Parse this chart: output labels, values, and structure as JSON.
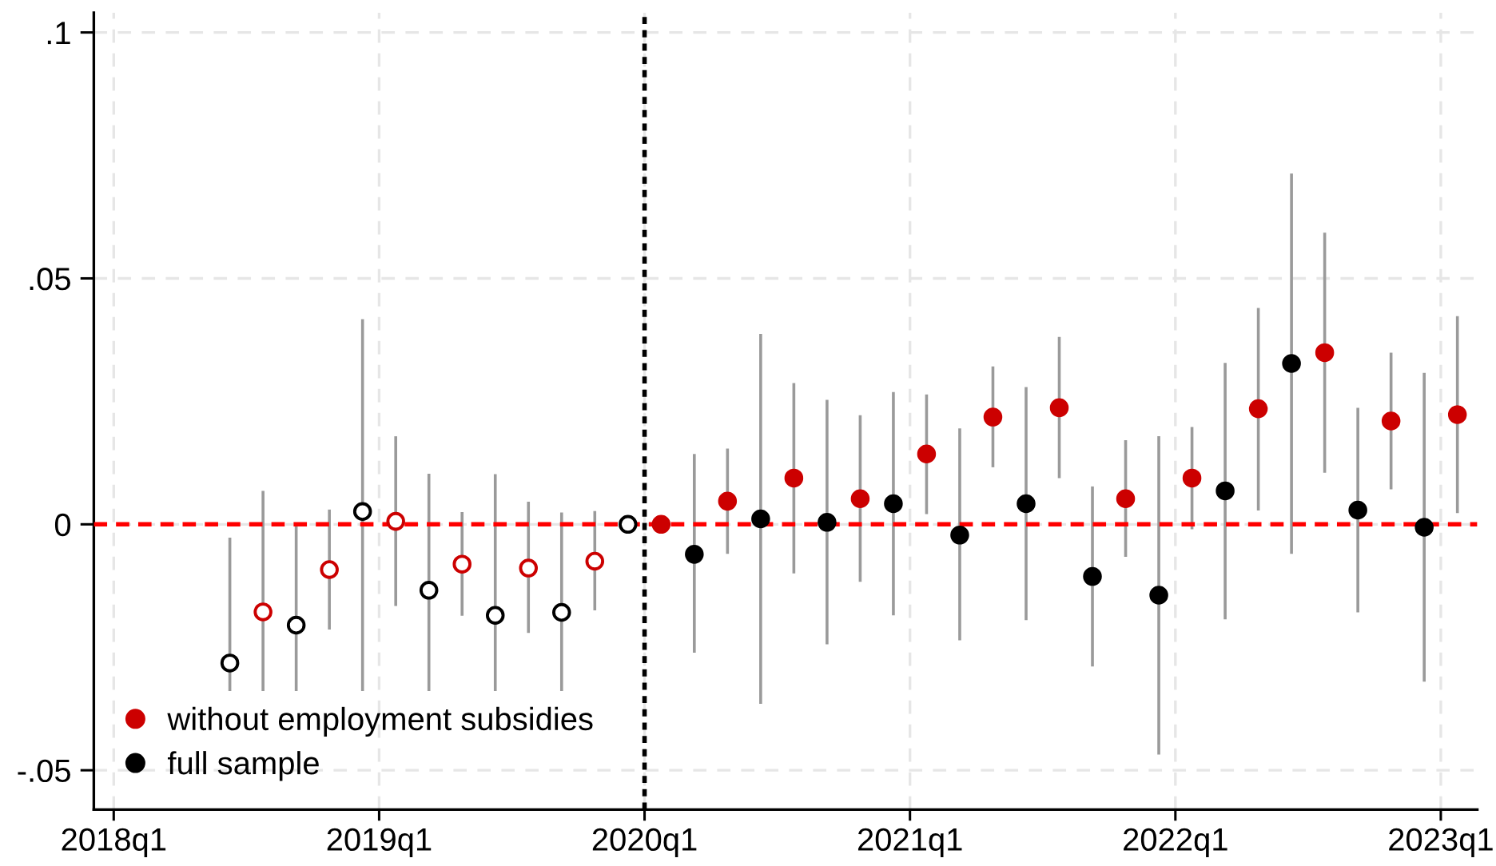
{
  "chart_data": {
    "type": "scatter",
    "categories": [
      "2018q1",
      null,
      null,
      null,
      "2019q1",
      null,
      null,
      null,
      "2020q1",
      null,
      null,
      null,
      "2021q1",
      null,
      null,
      null,
      "2022q1",
      null,
      null,
      null,
      "2023q1"
    ],
    "ylim": [
      -0.058,
      0.104
    ],
    "yticks": [
      {
        "value": -0.05,
        "label": "-.05"
      },
      0,
      {
        "value": 0.05,
        "label": ".05"
      },
      {
        "value": 0.1,
        "label": ".1"
      }
    ],
    "grid": true,
    "legend": "bottom left",
    "marker": "circle",
    "ref_lines": [
      {
        "axis": "y",
        "value": 0,
        "color": "#ff0000",
        "line_style": "dashed"
      },
      {
        "axis": "x",
        "value": "2020q1",
        "color": "#000000",
        "line_style": "dotted"
      }
    ],
    "series": [
      {
        "name": "without employment subsidies",
        "color": "#cc0000",
        "values": [
          null,
          null,
          -0.0178,
          -0.0092,
          0.0006,
          -0.0081,
          -0.0089,
          -0.0075,
          0,
          0.0047,
          0.0094,
          0.0052,
          0.0143,
          0.0218,
          0.0237,
          0.0052,
          0.0094,
          0.0235,
          0.0349,
          0.021,
          0.0223
        ],
        "errors": [
          null,
          null,
          [
            -0.0339,
            0.0068
          ],
          [
            -0.0214,
            0.003
          ],
          [
            -0.0166,
            0.0179
          ],
          [
            -0.0186,
            0.0025
          ],
          [
            -0.0221,
            0.0046
          ],
          [
            -0.0175,
            0.0027
          ],
          null,
          [
            -0.006,
            0.0154
          ],
          [
            -0.01,
            0.0287
          ],
          [
            -0.0117,
            0.0222
          ],
          [
            0.0021,
            0.0264
          ],
          [
            0.0116,
            0.0321
          ],
          [
            0.0094,
            0.0381
          ],
          [
            -0.0066,
            0.0171
          ],
          [
            -0.001,
            0.0198
          ],
          [
            0.0028,
            0.044
          ],
          [
            0.0105,
            0.0593
          ],
          [
            0.0071,
            0.0349
          ],
          [
            0.0023,
            0.0423
          ]
        ]
      },
      {
        "name": "full sample",
        "color": "#000000",
        "values": [
          null,
          null,
          -0.0282,
          -0.0205,
          0.0026,
          -0.0134,
          -0.0185,
          -0.0179,
          0,
          -0.0061,
          0.0011,
          0.0004,
          0.0042,
          -0.0022,
          0.0042,
          -0.0106,
          -0.0144,
          0.0068,
          0.0327,
          0.0029,
          -0.0006
        ],
        "errors": [
          null,
          null,
          [
            -0.0339,
            -0.0027
          ],
          [
            -0.0339,
            0.0
          ],
          [
            -0.0339,
            0.0417
          ],
          [
            -0.0339,
            0.0103
          ],
          [
            -0.0339,
            0.0102
          ],
          [
            -0.0339,
            0.0024
          ],
          null,
          [
            -0.0261,
            0.0143
          ],
          [
            -0.0365,
            0.0387
          ],
          [
            -0.0244,
            0.0253
          ],
          [
            -0.0185,
            0.0269
          ],
          [
            -0.0236,
            0.0195
          ],
          [
            -0.0195,
            0.0279
          ],
          [
            -0.0289,
            0.0077
          ],
          [
            -0.0468,
            0.0179
          ],
          [
            -0.0193,
            0.0328
          ],
          [
            -0.006,
            0.0713
          ],
          [
            -0.0179,
            0.0237
          ],
          [
            -0.032,
            0.0308
          ]
        ]
      }
    ]
  }
}
